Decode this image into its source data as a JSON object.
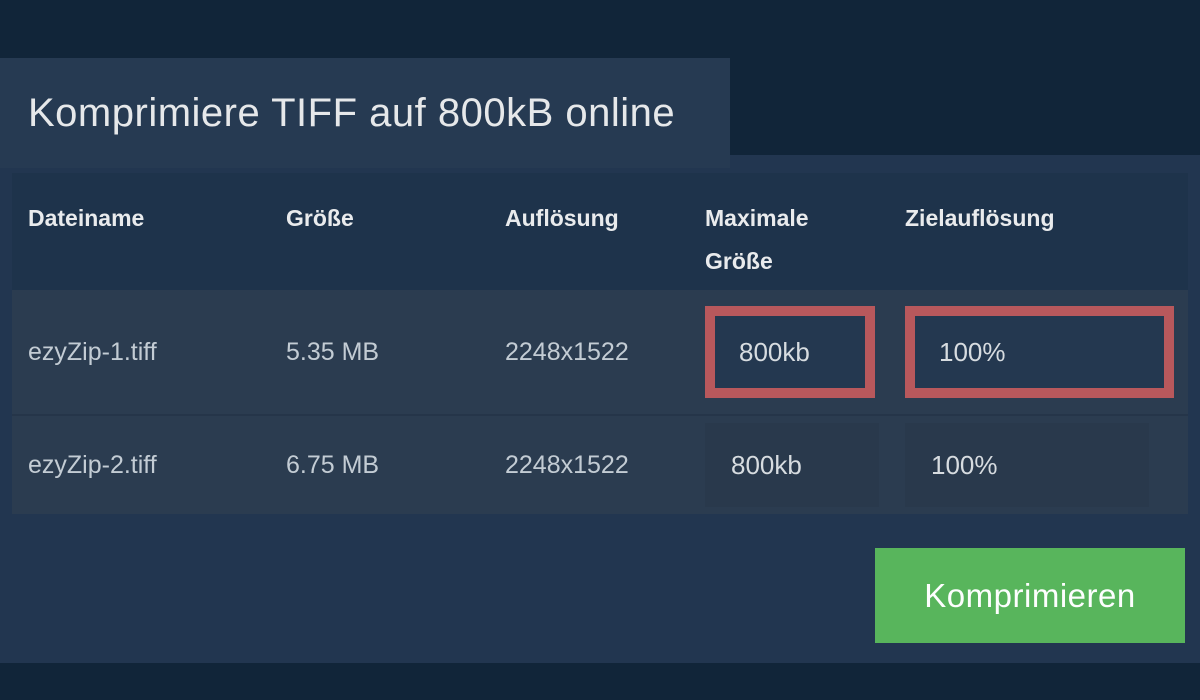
{
  "title": "Komprimiere TIFF auf 800kB online",
  "table": {
    "headers": [
      "Dateiname",
      "Größe",
      "Auflösung",
      "Maximale Größe",
      "Zielauflösung"
    ],
    "rows": [
      {
        "filename": "ezyZip-1.tiff",
        "size": "5.35 MB",
        "resolution": "2248x1522",
        "max_size": "800kb",
        "target_resolution": "100%",
        "highlighted": true
      },
      {
        "filename": "ezyZip-2.tiff",
        "size": "6.75 MB",
        "resolution": "2248x1522",
        "max_size": "800kb",
        "target_resolution": "100%",
        "highlighted": false
      }
    ]
  },
  "button": {
    "label": "Komprimieren"
  },
  "colors": {
    "accent_green": "#58b55c",
    "highlight_red": "#b8585c",
    "dark_bar": "#112539",
    "page_background": "#223650",
    "title_band": "#263a52",
    "header_row": "#1e334b",
    "data_row": "#2b3c50"
  }
}
